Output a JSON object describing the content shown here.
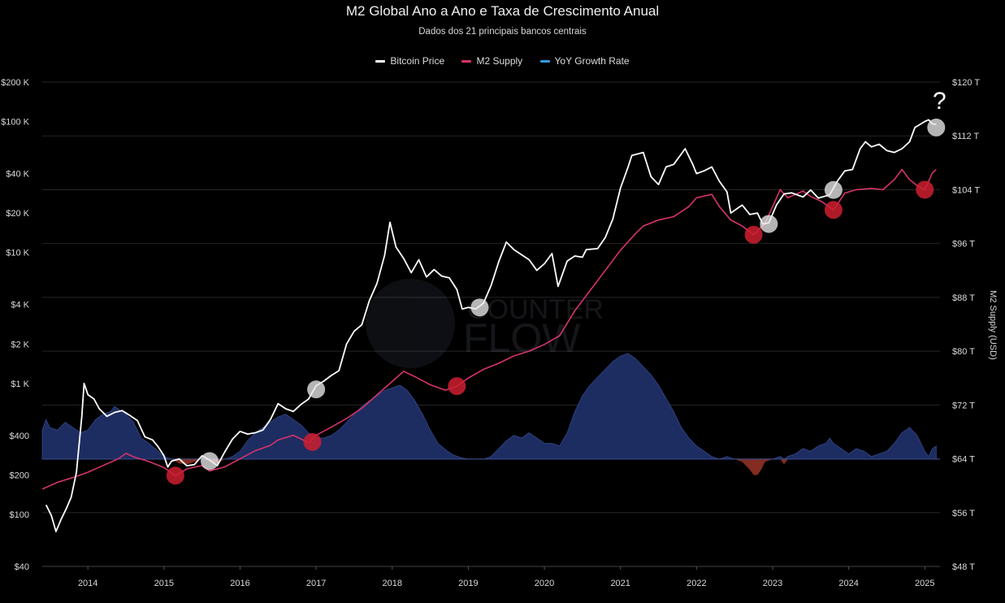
{
  "chart_data": {
    "type": "line",
    "title": "M2 Global Ano a Ano e Taxa de Crescimento Anual",
    "subtitle": "Dados dos 21 principais bancos centrais",
    "y2label": "M2 Supply (USD)",
    "grid": "horizontal",
    "legend_position": "top-center",
    "colors": {
      "btc": "#ffffff",
      "m2": "#d6336c",
      "yoy_pos": "#1f2f66",
      "yoy_neg": "#8a2e22",
      "marker_white": "#e8e8e8",
      "marker_red": "#cc1f2f"
    },
    "legend": [
      {
        "label": "Bitcoin Price",
        "color": "#ffffff"
      },
      {
        "label": "M2 Supply",
        "color": "#d6336c"
      },
      {
        "label": "YoY Growth Rate",
        "color": "#2f9be0"
      }
    ],
    "x_ticks": [
      "2014",
      "2015",
      "2016",
      "2017",
      "2018",
      "2019",
      "2020",
      "2021",
      "2022",
      "2023",
      "2024",
      "2025"
    ],
    "x_range": [
      2013.4,
      2025.2
    ],
    "left_axis": {
      "scale": "log",
      "range": [
        40,
        200000
      ],
      "ticks": [
        {
          "v": 200000,
          "label": "$200 K"
        },
        {
          "v": 100000,
          "label": "$100 K"
        },
        {
          "v": 40000,
          "label": "$40 K"
        },
        {
          "v": 20000,
          "label": "$20 K"
        },
        {
          "v": 10000,
          "label": "$10 K"
        },
        {
          "v": 4000,
          "label": "$4 K"
        },
        {
          "v": 2000,
          "label": "$2 K"
        },
        {
          "v": 1000,
          "label": "$1 K"
        },
        {
          "v": 400,
          "label": "$400"
        },
        {
          "v": 200,
          "label": "$200"
        },
        {
          "v": 100,
          "label": "$100"
        },
        {
          "v": 40,
          "label": "$40"
        }
      ]
    },
    "right_axis": {
      "scale": "linear",
      "range": [
        48,
        120
      ],
      "ticks": [
        {
          "v": 120,
          "label": "$120 T"
        },
        {
          "v": 112,
          "label": "$112 T"
        },
        {
          "v": 104,
          "label": "$104 T"
        },
        {
          "v": 96,
          "label": "$96 T"
        },
        {
          "v": 88,
          "label": "$88 T"
        },
        {
          "v": 80,
          "label": "$80 T"
        },
        {
          "v": 72,
          "label": "$72 T"
        },
        {
          "v": 64,
          "label": "$64 T"
        },
        {
          "v": 56,
          "label": "$56 T"
        },
        {
          "v": 48,
          "label": "$48 T"
        }
      ]
    },
    "annotation": "?",
    "watermark": [
      "COUNTER",
      "FLOW"
    ],
    "btc": [
      [
        2013.45,
        118
      ],
      [
        2013.52,
        98
      ],
      [
        2013.58,
        74
      ],
      [
        2013.65,
        92
      ],
      [
        2013.72,
        112
      ],
      [
        2013.78,
        135
      ],
      [
        2013.85,
        210
      ],
      [
        2013.92,
        560
      ],
      [
        2013.95,
        1000
      ],
      [
        2014.0,
        820
      ],
      [
        2014.08,
        760
      ],
      [
        2014.15,
        640
      ],
      [
        2014.25,
        560
      ],
      [
        2014.35,
        600
      ],
      [
        2014.45,
        620
      ],
      [
        2014.55,
        570
      ],
      [
        2014.65,
        520
      ],
      [
        2014.75,
        390
      ],
      [
        2014.85,
        370
      ],
      [
        2014.92,
        330
      ],
      [
        2015.0,
        280
      ],
      [
        2015.05,
        230
      ],
      [
        2015.1,
        255
      ],
      [
        2015.2,
        265
      ],
      [
        2015.3,
        235
      ],
      [
        2015.4,
        240
      ],
      [
        2015.5,
        280
      ],
      [
        2015.6,
        260
      ],
      [
        2015.7,
        235
      ],
      [
        2015.8,
        300
      ],
      [
        2015.9,
        375
      ],
      [
        2016.0,
        430
      ],
      [
        2016.1,
        410
      ],
      [
        2016.2,
        420
      ],
      [
        2016.3,
        440
      ],
      [
        2016.4,
        530
      ],
      [
        2016.5,
        700
      ],
      [
        2016.6,
        640
      ],
      [
        2016.7,
        610
      ],
      [
        2016.8,
        690
      ],
      [
        2016.9,
        760
      ],
      [
        2017.0,
        960
      ],
      [
        2017.1,
        1040
      ],
      [
        2017.2,
        1150
      ],
      [
        2017.3,
        1250
      ],
      [
        2017.4,
        2000
      ],
      [
        2017.5,
        2500
      ],
      [
        2017.6,
        2800
      ],
      [
        2017.7,
        4300
      ],
      [
        2017.8,
        5800
      ],
      [
        2017.9,
        9500
      ],
      [
        2017.97,
        17000
      ],
      [
        2018.05,
        11000
      ],
      [
        2018.15,
        9000
      ],
      [
        2018.25,
        7000
      ],
      [
        2018.35,
        8800
      ],
      [
        2018.45,
        6500
      ],
      [
        2018.55,
        7400
      ],
      [
        2018.65,
        6600
      ],
      [
        2018.75,
        6400
      ],
      [
        2018.85,
        5200
      ],
      [
        2018.92,
        3700
      ],
      [
        2019.0,
        3800
      ],
      [
        2019.1,
        3700
      ],
      [
        2019.2,
        4100
      ],
      [
        2019.3,
        5600
      ],
      [
        2019.4,
        8500
      ],
      [
        2019.5,
        12000
      ],
      [
        2019.6,
        10500
      ],
      [
        2019.7,
        9600
      ],
      [
        2019.8,
        8800
      ],
      [
        2019.9,
        7300
      ],
      [
        2020.0,
        8200
      ],
      [
        2020.1,
        9800
      ],
      [
        2020.18,
        5500
      ],
      [
        2020.3,
        8600
      ],
      [
        2020.4,
        9400
      ],
      [
        2020.5,
        9200
      ],
      [
        2020.55,
        10500
      ],
      [
        2020.7,
        10700
      ],
      [
        2020.8,
        13000
      ],
      [
        2020.9,
        18000
      ],
      [
        2021.0,
        31000
      ],
      [
        2021.1,
        45000
      ],
      [
        2021.15,
        55000
      ],
      [
        2021.3,
        58000
      ],
      [
        2021.4,
        38000
      ],
      [
        2021.5,
        33000
      ],
      [
        2021.6,
        45000
      ],
      [
        2021.7,
        47000
      ],
      [
        2021.85,
        62000
      ],
      [
        2021.95,
        47000
      ],
      [
        2022.0,
        40000
      ],
      [
        2022.1,
        42000
      ],
      [
        2022.2,
        45000
      ],
      [
        2022.3,
        35000
      ],
      [
        2022.4,
        29000
      ],
      [
        2022.45,
        20000
      ],
      [
        2022.6,
        23000
      ],
      [
        2022.7,
        19500
      ],
      [
        2022.8,
        20000
      ],
      [
        2022.87,
        16500
      ],
      [
        2022.95,
        16800
      ],
      [
        2023.05,
        23000
      ],
      [
        2023.15,
        28000
      ],
      [
        2023.25,
        28500
      ],
      [
        2023.4,
        26500
      ],
      [
        2023.5,
        30000
      ],
      [
        2023.6,
        26000
      ],
      [
        2023.75,
        27500
      ],
      [
        2023.85,
        35000
      ],
      [
        2023.95,
        42000
      ],
      [
        2024.05,
        43000
      ],
      [
        2024.15,
        62000
      ],
      [
        2024.22,
        70000
      ],
      [
        2024.3,
        64000
      ],
      [
        2024.4,
        67000
      ],
      [
        2024.5,
        60000
      ],
      [
        2024.6,
        58000
      ],
      [
        2024.7,
        62000
      ],
      [
        2024.8,
        70000
      ],
      [
        2024.87,
        90000
      ],
      [
        2024.95,
        96000
      ],
      [
        2025.0,
        100000
      ],
      [
        2025.05,
        103000
      ],
      [
        2025.1,
        96000
      ],
      [
        2025.15,
        95000
      ]
    ],
    "m2": [
      [
        2013.4,
        59.5
      ],
      [
        2013.6,
        60.5
      ],
      [
        2013.8,
        61.2
      ],
      [
        2014.0,
        62.0
      ],
      [
        2014.2,
        63.0
      ],
      [
        2014.4,
        64.0
      ],
      [
        2014.5,
        64.8
      ],
      [
        2014.6,
        64.3
      ],
      [
        2014.8,
        63.6
      ],
      [
        2015.0,
        62.7
      ],
      [
        2015.15,
        61.5
      ],
      [
        2015.3,
        62.5
      ],
      [
        2015.5,
        63.0
      ],
      [
        2015.6,
        62.2
      ],
      [
        2015.8,
        62.8
      ],
      [
        2016.0,
        64.0
      ],
      [
        2016.2,
        65.2
      ],
      [
        2016.4,
        66.0
      ],
      [
        2016.5,
        66.8
      ],
      [
        2016.7,
        67.5
      ],
      [
        2016.9,
        66.4
      ],
      [
        2017.0,
        67.5
      ],
      [
        2017.2,
        68.7
      ],
      [
        2017.4,
        70.0
      ],
      [
        2017.6,
        71.5
      ],
      [
        2017.8,
        73.5
      ],
      [
        2018.0,
        75.5
      ],
      [
        2018.15,
        77.0
      ],
      [
        2018.3,
        76.2
      ],
      [
        2018.5,
        75.0
      ],
      [
        2018.7,
        74.2
      ],
      [
        2018.85,
        74.8
      ],
      [
        2019.0,
        76.0
      ],
      [
        2019.2,
        77.3
      ],
      [
        2019.4,
        78.2
      ],
      [
        2019.6,
        79.3
      ],
      [
        2019.8,
        80.0
      ],
      [
        2020.0,
        81.0
      ],
      [
        2020.2,
        82.3
      ],
      [
        2020.4,
        86.0
      ],
      [
        2020.6,
        89.0
      ],
      [
        2020.8,
        92.0
      ],
      [
        2021.0,
        95.0
      ],
      [
        2021.2,
        97.5
      ],
      [
        2021.3,
        98.6
      ],
      [
        2021.5,
        99.5
      ],
      [
        2021.7,
        100.0
      ],
      [
        2021.9,
        101.5
      ],
      [
        2022.0,
        102.8
      ],
      [
        2022.2,
        103.3
      ],
      [
        2022.3,
        101.5
      ],
      [
        2022.45,
        99.5
      ],
      [
        2022.6,
        98.6
      ],
      [
        2022.75,
        97.3
      ],
      [
        2022.9,
        99.0
      ],
      [
        2023.0,
        101.5
      ],
      [
        2023.1,
        104.0
      ],
      [
        2023.2,
        102.8
      ],
      [
        2023.4,
        103.8
      ],
      [
        2023.5,
        103.0
      ],
      [
        2023.65,
        102.2
      ],
      [
        2023.8,
        101.0
      ],
      [
        2023.95,
        103.5
      ],
      [
        2024.1,
        104.0
      ],
      [
        2024.3,
        104.2
      ],
      [
        2024.45,
        104.0
      ],
      [
        2024.6,
        105.5
      ],
      [
        2024.7,
        107.0
      ],
      [
        2024.8,
        105.5
      ],
      [
        2024.9,
        104.6
      ],
      [
        2025.0,
        104.0
      ],
      [
        2025.1,
        106.5
      ],
      [
        2025.15,
        107.0
      ]
    ],
    "yoy": [
      [
        2013.4,
        0.55
      ],
      [
        2013.45,
        0.75
      ],
      [
        2013.5,
        0.6
      ],
      [
        2013.6,
        0.55
      ],
      [
        2013.7,
        0.7
      ],
      [
        2013.8,
        0.6
      ],
      [
        2013.9,
        0.5
      ],
      [
        2014.0,
        0.55
      ],
      [
        2014.1,
        0.75
      ],
      [
        2014.2,
        0.85
      ],
      [
        2014.3,
        0.9
      ],
      [
        2014.35,
        1.0
      ],
      [
        2014.4,
        0.95
      ],
      [
        2014.45,
        0.9
      ],
      [
        2014.5,
        0.85
      ],
      [
        2014.6,
        0.7
      ],
      [
        2014.7,
        0.4
      ],
      [
        2014.8,
        0.3
      ],
      [
        2014.9,
        0.18
      ],
      [
        2015.0,
        0.05
      ],
      [
        2015.1,
        0.0
      ],
      [
        2015.2,
        -0.08
      ],
      [
        2015.3,
        -0.1
      ],
      [
        2015.4,
        -0.05
      ],
      [
        2015.5,
        0.0
      ],
      [
        2015.6,
        -0.04
      ],
      [
        2015.7,
        -0.08
      ],
      [
        2015.8,
        0.0
      ],
      [
        2015.9,
        0.05
      ],
      [
        2016.0,
        0.15
      ],
      [
        2016.1,
        0.35
      ],
      [
        2016.2,
        0.5
      ],
      [
        2016.3,
        0.6
      ],
      [
        2016.4,
        0.7
      ],
      [
        2016.5,
        0.8
      ],
      [
        2016.6,
        0.85
      ],
      [
        2016.7,
        0.75
      ],
      [
        2016.8,
        0.65
      ],
      [
        2016.9,
        0.5
      ],
      [
        2017.0,
        0.4
      ],
      [
        2017.1,
        0.4
      ],
      [
        2017.2,
        0.45
      ],
      [
        2017.3,
        0.55
      ],
      [
        2017.4,
        0.7
      ],
      [
        2017.5,
        0.85
      ],
      [
        2017.6,
        1.0
      ],
      [
        2017.7,
        1.1
      ],
      [
        2017.8,
        1.2
      ],
      [
        2017.9,
        1.3
      ],
      [
        2018.0,
        1.35
      ],
      [
        2018.1,
        1.4
      ],
      [
        2018.2,
        1.3
      ],
      [
        2018.3,
        1.1
      ],
      [
        2018.4,
        0.85
      ],
      [
        2018.5,
        0.55
      ],
      [
        2018.6,
        0.3
      ],
      [
        2018.7,
        0.18
      ],
      [
        2018.8,
        0.08
      ],
      [
        2018.9,
        0.03
      ],
      [
        2019.0,
        0.0
      ],
      [
        2019.2,
        0.0
      ],
      [
        2019.3,
        0.05
      ],
      [
        2019.4,
        0.2
      ],
      [
        2019.5,
        0.35
      ],
      [
        2019.6,
        0.45
      ],
      [
        2019.7,
        0.4
      ],
      [
        2019.8,
        0.5
      ],
      [
        2019.9,
        0.4
      ],
      [
        2020.0,
        0.3
      ],
      [
        2020.1,
        0.3
      ],
      [
        2020.2,
        0.25
      ],
      [
        2020.3,
        0.5
      ],
      [
        2020.4,
        0.9
      ],
      [
        2020.5,
        1.2
      ],
      [
        2020.6,
        1.4
      ],
      [
        2020.7,
        1.55
      ],
      [
        2020.8,
        1.7
      ],
      [
        2020.9,
        1.85
      ],
      [
        2021.0,
        1.95
      ],
      [
        2021.1,
        2.0
      ],
      [
        2021.2,
        1.9
      ],
      [
        2021.3,
        1.75
      ],
      [
        2021.4,
        1.6
      ],
      [
        2021.5,
        1.4
      ],
      [
        2021.6,
        1.15
      ],
      [
        2021.7,
        0.9
      ],
      [
        2021.8,
        0.6
      ],
      [
        2021.9,
        0.4
      ],
      [
        2022.0,
        0.25
      ],
      [
        2022.1,
        0.15
      ],
      [
        2022.2,
        0.05
      ],
      [
        2022.3,
        0.0
      ],
      [
        2022.4,
        0.05
      ],
      [
        2022.5,
        0.0
      ],
      [
        2022.6,
        -0.05
      ],
      [
        2022.7,
        -0.2
      ],
      [
        2022.75,
        -0.3
      ],
      [
        2022.8,
        -0.3
      ],
      [
        2022.85,
        -0.2
      ],
      [
        2022.9,
        -0.05
      ],
      [
        2023.0,
        0.0
      ],
      [
        2023.1,
        0.05
      ],
      [
        2023.15,
        -0.1
      ],
      [
        2023.2,
        0.05
      ],
      [
        2023.3,
        0.1
      ],
      [
        2023.4,
        0.2
      ],
      [
        2023.5,
        0.15
      ],
      [
        2023.6,
        0.25
      ],
      [
        2023.7,
        0.3
      ],
      [
        2023.75,
        0.4
      ],
      [
        2023.8,
        0.3
      ],
      [
        2023.9,
        0.2
      ],
      [
        2024.0,
        0.1
      ],
      [
        2024.1,
        0.2
      ],
      [
        2024.2,
        0.15
      ],
      [
        2024.3,
        0.05
      ],
      [
        2024.4,
        0.1
      ],
      [
        2024.5,
        0.15
      ],
      [
        2024.6,
        0.3
      ],
      [
        2024.7,
        0.5
      ],
      [
        2024.8,
        0.6
      ],
      [
        2024.9,
        0.45
      ],
      [
        2025.0,
        0.15
      ],
      [
        2025.05,
        0.05
      ],
      [
        2025.1,
        0.2
      ],
      [
        2025.15,
        0.25
      ]
    ],
    "markers_white": [
      [
        2015.6,
        255
      ],
      [
        2017.0,
        900
      ],
      [
        2019.15,
        3800
      ],
      [
        2022.95,
        16500
      ],
      [
        2023.8,
        30000
      ],
      [
        2025.15,
        90000
      ]
    ],
    "markers_red": [
      [
        2015.15,
        61.5
      ],
      [
        2016.95,
        66.5
      ],
      [
        2018.85,
        74.8
      ],
      [
        2022.75,
        97.3
      ],
      [
        2023.8,
        101.0
      ],
      [
        2025.0,
        104.0
      ]
    ]
  }
}
